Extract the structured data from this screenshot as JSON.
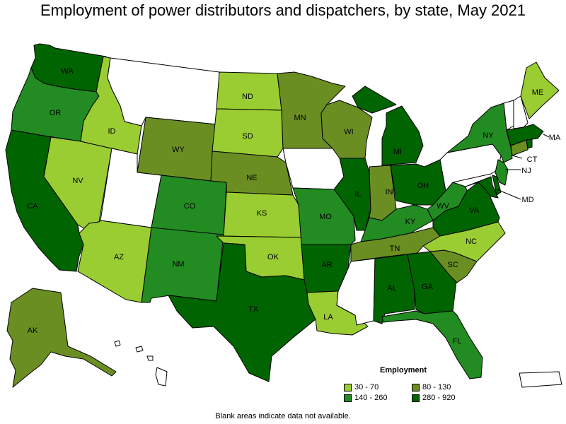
{
  "title": "Employment of power distributors and dispatchers, by state, May 2021",
  "legend": {
    "title": "Employment",
    "items": [
      {
        "label": "30 - 70",
        "color": "#9ACD32"
      },
      {
        "label": "80 - 130",
        "color": "#6B8E23"
      },
      {
        "label": "140 - 260",
        "color": "#228B22"
      },
      {
        "label": "280 - 920",
        "color": "#006400"
      }
    ]
  },
  "note": "Blank areas indicate data not available.",
  "colors": {
    "nodata": "#ffffff",
    "border": "#000000"
  },
  "states": {
    "WA": {
      "label": "WA",
      "class": 3
    },
    "OR": {
      "label": "OR",
      "class": 2
    },
    "CA": {
      "label": "CA",
      "class": 3
    },
    "NV": {
      "label": "NV",
      "class": 0
    },
    "ID": {
      "label": "ID",
      "class": 0
    },
    "MT": {
      "label": "",
      "class": null
    },
    "WY": {
      "label": "WY",
      "class": 1
    },
    "UT": {
      "label": "",
      "class": null
    },
    "AZ": {
      "label": "AZ",
      "class": 0
    },
    "CO": {
      "label": "CO",
      "class": 2
    },
    "NM": {
      "label": "NM",
      "class": 2
    },
    "ND": {
      "label": "ND",
      "class": 0
    },
    "SD": {
      "label": "SD",
      "class": 0
    },
    "NE": {
      "label": "NE",
      "class": 1
    },
    "KS": {
      "label": "KS",
      "class": 0
    },
    "OK": {
      "label": "OK",
      "class": 0
    },
    "TX": {
      "label": "TX",
      "class": 3
    },
    "MN": {
      "label": "MN",
      "class": 1
    },
    "IA": {
      "label": "",
      "class": null
    },
    "MO": {
      "label": "MO",
      "class": 2
    },
    "AR": {
      "label": "AR",
      "class": 3
    },
    "LA": {
      "label": "LA",
      "class": 0
    },
    "WI": {
      "label": "WI",
      "class": 1
    },
    "IL": {
      "label": "IL",
      "class": 3
    },
    "MI": {
      "label": "MI",
      "class": 3
    },
    "IN": {
      "label": "IN",
      "class": 1
    },
    "OH": {
      "label": "OH",
      "class": 3
    },
    "KY": {
      "label": "KY",
      "class": 2
    },
    "TN": {
      "label": "TN",
      "class": 1
    },
    "MS": {
      "label": "",
      "class": null
    },
    "AL": {
      "label": "AL",
      "class": 3
    },
    "GA": {
      "label": "GA",
      "class": 3
    },
    "FL": {
      "label": "FL",
      "class": 2
    },
    "SC": {
      "label": "SC",
      "class": 1
    },
    "NC": {
      "label": "NC",
      "class": 0
    },
    "VA": {
      "label": "VA",
      "class": 3
    },
    "WV": {
      "label": "WV",
      "class": 2
    },
    "PA": {
      "label": "",
      "class": null
    },
    "NY": {
      "label": "NY",
      "class": 2
    },
    "MD": {
      "label": "MD",
      "class": 3
    },
    "DE": {
      "label": "",
      "class": 3
    },
    "NJ": {
      "label": "NJ",
      "class": 2
    },
    "CT": {
      "label": "CT",
      "class": 1
    },
    "RI": {
      "label": "",
      "class": 3
    },
    "MA": {
      "label": "MA",
      "class": 3
    },
    "VT": {
      "label": "",
      "class": null
    },
    "NH": {
      "label": "",
      "class": null
    },
    "ME": {
      "label": "ME",
      "class": 0
    },
    "AK": {
      "label": "AK",
      "class": 1
    },
    "HI": {
      "label": "",
      "class": null
    },
    "PR": {
      "label": "",
      "class": null
    }
  }
}
